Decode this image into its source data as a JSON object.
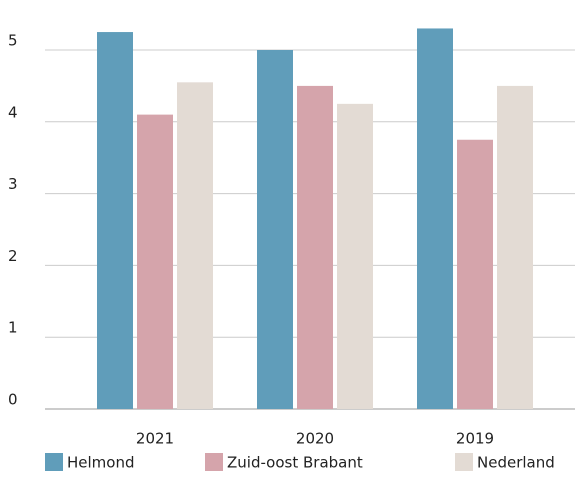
{
  "chart_data": {
    "type": "bar",
    "categories": [
      "2021",
      "2020",
      "2019"
    ],
    "series": [
      {
        "name": "Helmond",
        "color": "#609dba",
        "values": [
          5.25,
          5.0,
          5.3
        ]
      },
      {
        "name": "Zuid-oost Brabant",
        "color": "#d5a4ab",
        "values": [
          4.1,
          4.5,
          3.75
        ]
      },
      {
        "name": "Nederland",
        "color": "#e3dbd4",
        "values": [
          4.55,
          4.25,
          4.5
        ]
      }
    ],
    "ylim": [
      0,
      5.5
    ],
    "yticks": [
      0,
      1,
      2,
      3,
      4,
      5
    ],
    "grid": true,
    "legend": "bottom"
  }
}
